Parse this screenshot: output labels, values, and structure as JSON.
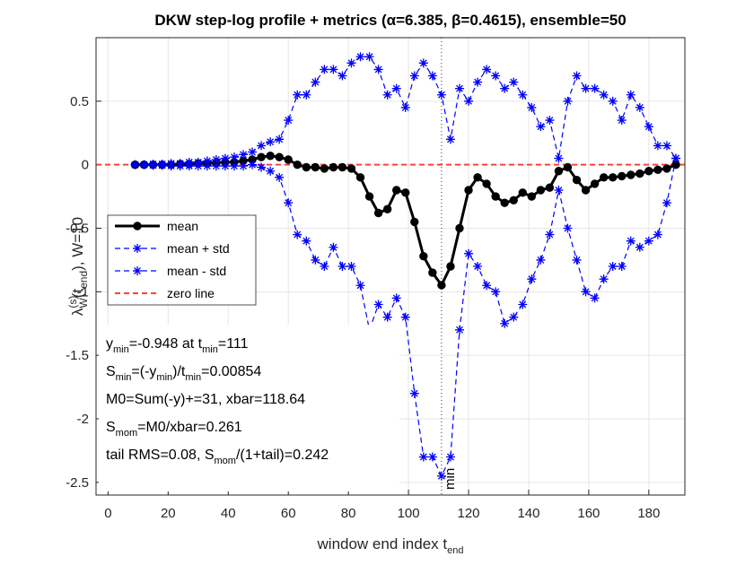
{
  "chart_data": {
    "type": "line",
    "title": "DKW step-log profile + metrics (α=6.385, β=0.4615), ensemble=50",
    "xlabel": [
      "window end index t",
      "end"
    ],
    "ylabel": [
      {
        "text": "λ",
        "style": "base"
      },
      {
        "text": "(s)",
        "style": "sup"
      },
      {
        "text": "W",
        "style": "sub"
      },
      {
        "text": "(t",
        "style": "base"
      },
      {
        "text": "end",
        "style": "sub"
      },
      {
        "text": "),   W=10",
        "style": "base"
      }
    ],
    "xlim": [
      -4,
      192
    ],
    "ylim": [
      -2.6,
      1
    ],
    "xticks": [
      0,
      20,
      40,
      60,
      80,
      100,
      120,
      140,
      160,
      180
    ],
    "yticks": [
      -2.5,
      -2,
      -1.5,
      -1,
      -0.5,
      0,
      0.5
    ],
    "grid": true,
    "legend": "center-left",
    "x": [
      9,
      12,
      15,
      18,
      21,
      24,
      27,
      30,
      33,
      36,
      39,
      42,
      45,
      48,
      51,
      54,
      57,
      60,
      63,
      66,
      69,
      72,
      75,
      78,
      81,
      84,
      87,
      90,
      93,
      96,
      99,
      102,
      105,
      108,
      111,
      114,
      117,
      120,
      123,
      126,
      129,
      132,
      135,
      138,
      141,
      144,
      147,
      150,
      153,
      156,
      159,
      162,
      165,
      168,
      171,
      174,
      177,
      180,
      183,
      186,
      189
    ],
    "series": [
      {
        "name": "mean",
        "color": "#000000",
        "marker": "o",
        "line_style": "solid",
        "line_width": 3,
        "values": [
          0,
          0,
          0,
          0,
          0,
          0.005,
          0.005,
          0.01,
          0.01,
          0.015,
          0.02,
          0.02,
          0.03,
          0.04,
          0.06,
          0.07,
          0.06,
          0.04,
          0.0,
          -0.02,
          -0.02,
          -0.03,
          -0.02,
          -0.02,
          -0.03,
          -0.1,
          -0.25,
          -0.38,
          -0.35,
          -0.2,
          -0.22,
          -0.45,
          -0.72,
          -0.85,
          -0.948,
          -0.8,
          -0.5,
          -0.2,
          -0.1,
          -0.15,
          -0.25,
          -0.3,
          -0.28,
          -0.22,
          -0.25,
          -0.2,
          -0.18,
          -0.05,
          -0.02,
          -0.12,
          -0.2,
          -0.15,
          -0.1,
          -0.1,
          -0.09,
          -0.08,
          -0.07,
          -0.05,
          -0.04,
          -0.03,
          0.0
        ]
      },
      {
        "name": "mean + std",
        "color": "#0000ff",
        "marker": "*",
        "line_style": "dashed",
        "line_width": 1.2,
        "values": [
          0,
          0,
          0.005,
          0.005,
          0.01,
          0.01,
          0.02,
          0.02,
          0.03,
          0.04,
          0.05,
          0.06,
          0.08,
          0.1,
          0.15,
          0.18,
          0.2,
          0.35,
          0.55,
          0.55,
          0.65,
          0.75,
          0.75,
          0.7,
          0.8,
          0.85,
          0.85,
          0.75,
          0.55,
          0.6,
          0.45,
          0.7,
          0.8,
          0.7,
          0.55,
          0.2,
          0.6,
          0.5,
          0.65,
          0.75,
          0.7,
          0.6,
          0.65,
          0.55,
          0.45,
          0.3,
          0.35,
          0.05,
          0.5,
          0.7,
          0.6,
          0.6,
          0.55,
          0.5,
          0.35,
          0.55,
          0.45,
          0.3,
          0.15,
          0.15,
          0.05
        ]
      },
      {
        "name": "mean - std",
        "color": "#0000ff",
        "marker": "*",
        "line_style": "dashed",
        "line_width": 1.2,
        "values": [
          0,
          0,
          -0.005,
          -0.005,
          -0.01,
          -0.01,
          -0.01,
          -0.01,
          -0.01,
          -0.01,
          -0.01,
          -0.01,
          -0.01,
          0,
          -0.02,
          -0.05,
          -0.1,
          -0.3,
          -0.55,
          -0.6,
          -0.75,
          -0.8,
          -0.65,
          -0.8,
          -0.8,
          -0.95,
          -1.3,
          -1.1,
          -1.2,
          -1.05,
          -1.2,
          -1.8,
          -2.3,
          -2.3,
          -2.45,
          -2.3,
          -1.3,
          -0.7,
          -0.8,
          -0.95,
          -1.0,
          -1.25,
          -1.2,
          -1.1,
          -0.9,
          -0.75,
          -0.55,
          -0.2,
          -0.5,
          -0.75,
          -1.0,
          -1.05,
          -0.9,
          -0.8,
          -0.8,
          -0.6,
          -0.65,
          -0.6,
          -0.55,
          -0.3,
          0.05
        ]
      }
    ],
    "hlines": [
      {
        "name": "zero line",
        "color": "#ff4040",
        "y": 0,
        "line_style": "dashed"
      }
    ],
    "vline": {
      "x": 111,
      "label": "min"
    },
    "text_lines": [
      [
        "y",
        "min",
        "=-0.948 at t",
        "min",
        "=111"
      ],
      [
        "S",
        "min",
        "=(-y",
        "min",
        ")/t",
        "min",
        "=0.00854"
      ],
      [
        "M0=Sum(-y)+=31, xbar=118.64"
      ],
      [
        "S",
        "mom",
        "=M0/xbar=0.261"
      ],
      [
        "tail RMS=0.08, S",
        "mom",
        "/(1+tail)=0.242"
      ]
    ]
  }
}
